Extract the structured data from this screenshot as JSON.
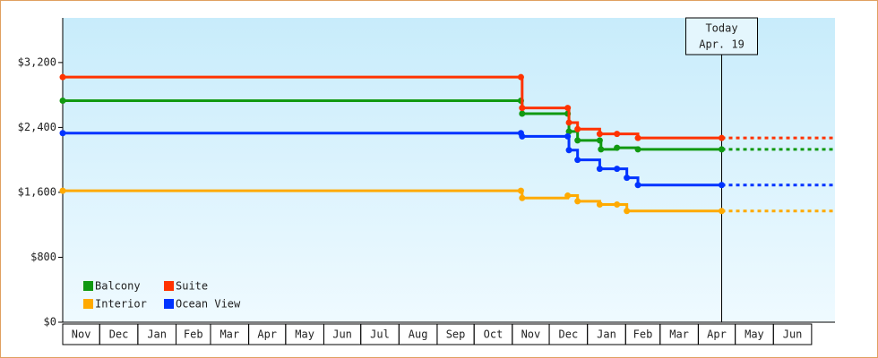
{
  "chart_data": {
    "type": "step",
    "xlim": [
      0,
      627
    ],
    "ylim": [
      0,
      3750
    ],
    "yticks": [
      {
        "value": 0,
        "label": "$0"
      },
      {
        "value": 800,
        "label": "$800"
      },
      {
        "value": 1600,
        "label": "$1,600"
      },
      {
        "value": 2400,
        "label": "$2,400"
      },
      {
        "value": 3200,
        "label": "$3,200"
      }
    ],
    "xticks": [
      {
        "value": 0,
        "label": "Nov"
      },
      {
        "value": 30,
        "label": "Dec"
      },
      {
        "value": 61,
        "label": "Jan"
      },
      {
        "value": 92,
        "label": "Feb"
      },
      {
        "value": 120,
        "label": "Mar"
      },
      {
        "value": 151,
        "label": "Apr"
      },
      {
        "value": 181,
        "label": "May"
      },
      {
        "value": 212,
        "label": "Jun"
      },
      {
        "value": 242,
        "label": "Jul"
      },
      {
        "value": 273,
        "label": "Aug"
      },
      {
        "value": 304,
        "label": "Sep"
      },
      {
        "value": 334,
        "label": "Oct"
      },
      {
        "value": 365,
        "label": "Nov"
      },
      {
        "value": 395,
        "label": "Dec"
      },
      {
        "value": 426,
        "label": "Jan"
      },
      {
        "value": 457,
        "label": "Feb"
      },
      {
        "value": 485,
        "label": "Mar"
      },
      {
        "value": 516,
        "label": "Apr"
      },
      {
        "value": 546,
        "label": "May"
      },
      {
        "value": 577,
        "label": "Jun"
      }
    ],
    "series": [
      {
        "name": "Balcony",
        "color": "#119911",
        "x": [
          0,
          372,
          373,
          410,
          411,
          418,
          436,
          437,
          450,
          467,
          535
        ],
        "values": [
          2730,
          2730,
          2570,
          2570,
          2350,
          2240,
          2240,
          2130,
          2150,
          2130,
          2130
        ]
      },
      {
        "name": "Suite",
        "color": "#ff3300",
        "x": [
          0,
          372,
          373,
          410,
          411,
          418,
          436,
          450,
          467,
          535
        ],
        "values": [
          3020,
          3020,
          2640,
          2640,
          2460,
          2380,
          2320,
          2320,
          2270,
          2270
        ]
      },
      {
        "name": "Interior",
        "color": "#ffaa00",
        "x": [
          0,
          372,
          373,
          410,
          418,
          436,
          450,
          458,
          535
        ],
        "values": [
          1620,
          1620,
          1530,
          1560,
          1490,
          1450,
          1450,
          1370,
          1370
        ]
      },
      {
        "name": "Ocean View",
        "color": "#0033ff",
        "x": [
          0,
          372,
          373,
          410,
          411,
          418,
          436,
          450,
          458,
          467,
          535
        ],
        "values": [
          2330,
          2330,
          2290,
          2290,
          2120,
          2000,
          1890,
          1890,
          1780,
          1690,
          1690
        ]
      }
    ],
    "annotation": {
      "x": 535,
      "lines": [
        "Today",
        "Apr. 19"
      ]
    }
  }
}
